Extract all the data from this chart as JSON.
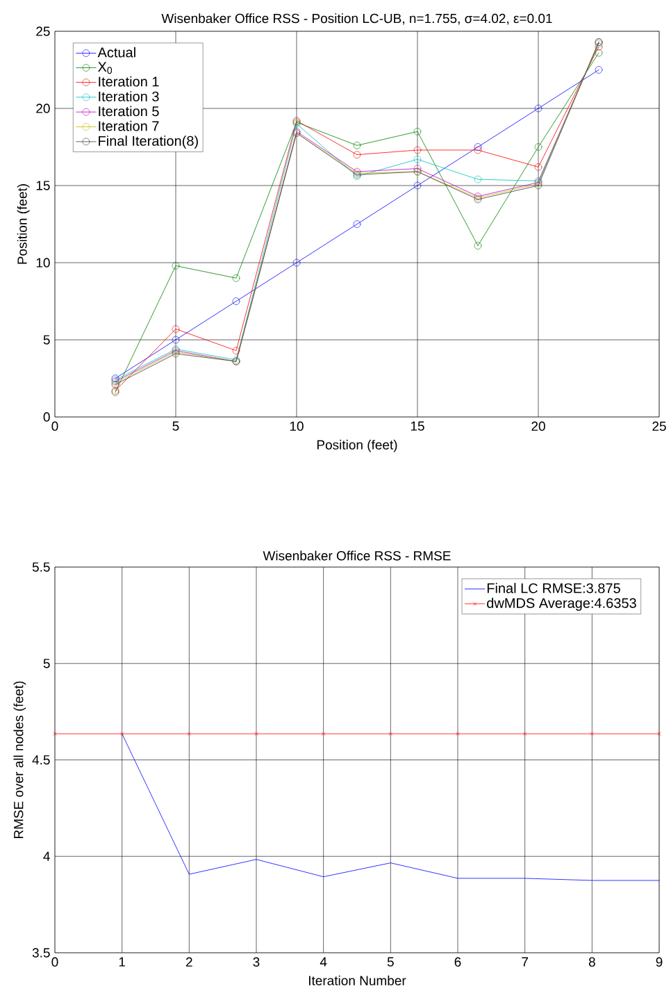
{
  "chart_data": [
    {
      "type": "line",
      "title": "Wisenbaker Office RSS - Position LC-UB, n=1.755, σ=4.02, ε=0.01",
      "xlabel": "Position (feet)",
      "ylabel": "Position (feet)",
      "x": [
        2.5,
        5,
        7.5,
        10,
        12.5,
        15,
        17.5,
        20,
        22.5
      ],
      "series": [
        {
          "name": "Actual",
          "color": "#0000ff",
          "values": [
            2.5,
            5,
            7.5,
            10,
            12.5,
            15,
            17.5,
            20,
            22.5
          ]
        },
        {
          "name": "X$_{0}$",
          "color": "#008000",
          "values": [
            1.6,
            9.8,
            9.0,
            19.1,
            17.6,
            18.5,
            11.1,
            17.5,
            23.6
          ]
        },
        {
          "name": "Iteration 1",
          "color": "#ff0000",
          "values": [
            1.7,
            5.7,
            4.3,
            19.2,
            17.0,
            17.3,
            17.3,
            16.2,
            24.0
          ]
        },
        {
          "name": "Iteration 3",
          "color": "#00bfbf",
          "values": [
            2.4,
            4.4,
            3.7,
            19.0,
            15.6,
            16.7,
            15.4,
            15.3,
            24.2
          ]
        },
        {
          "name": "Iteration 5",
          "color": "#bf00bf",
          "values": [
            2.3,
            4.3,
            3.6,
            18.5,
            15.9,
            16.1,
            14.3,
            15.2,
            24.3
          ]
        },
        {
          "name": "Iteration 7",
          "color": "#bfbf00",
          "values": [
            2.2,
            4.2,
            3.6,
            18.4,
            15.8,
            15.9,
            14.2,
            15.1,
            24.3
          ]
        },
        {
          "name": "Final Iteration(8)",
          "color": "#404040",
          "values": [
            2.1,
            4.1,
            3.6,
            18.4,
            15.7,
            15.9,
            14.1,
            15.0,
            24.3
          ]
        }
      ],
      "marker": "circle",
      "xlim": [
        0,
        25
      ],
      "ylim": [
        0,
        25
      ],
      "xticks": [
        0,
        5,
        10,
        15,
        20,
        25
      ],
      "yticks": [
        0,
        5,
        10,
        15,
        20,
        25
      ],
      "grid": true,
      "legend": "top left"
    },
    {
      "type": "line",
      "title": "Wisenbaker Office RSS - RMSE",
      "xlabel": "Iteration Number",
      "ylabel": "RMSE over all nodes (feet)",
      "series": [
        {
          "name": "Final LC RMSE:3.875",
          "color": "#0000ff",
          "marker": "none",
          "x": [
            1,
            2,
            3,
            4,
            5,
            6,
            7,
            8,
            9
          ],
          "values": [
            4.6353,
            3.907,
            3.984,
            3.894,
            3.966,
            3.886,
            3.886,
            3.875,
            3.875
          ]
        },
        {
          "name": "dwMDS Average:4.6353",
          "color": "#ff0000",
          "marker": "cross",
          "x": [
            0,
            1,
            2,
            3,
            4,
            5,
            6,
            7,
            8,
            9
          ],
          "values": [
            4.6353,
            4.6353,
            4.6353,
            4.6353,
            4.6353,
            4.6353,
            4.6353,
            4.6353,
            4.6353,
            4.6353
          ]
        }
      ],
      "xlim": [
        0,
        9
      ],
      "ylim": [
        3.5,
        5.5
      ],
      "xticks": [
        0,
        1,
        2,
        3,
        4,
        5,
        6,
        7,
        8,
        9
      ],
      "yticks": [
        3.5,
        4,
        4.5,
        5,
        5.5
      ],
      "grid": true,
      "legend": "top right"
    }
  ]
}
